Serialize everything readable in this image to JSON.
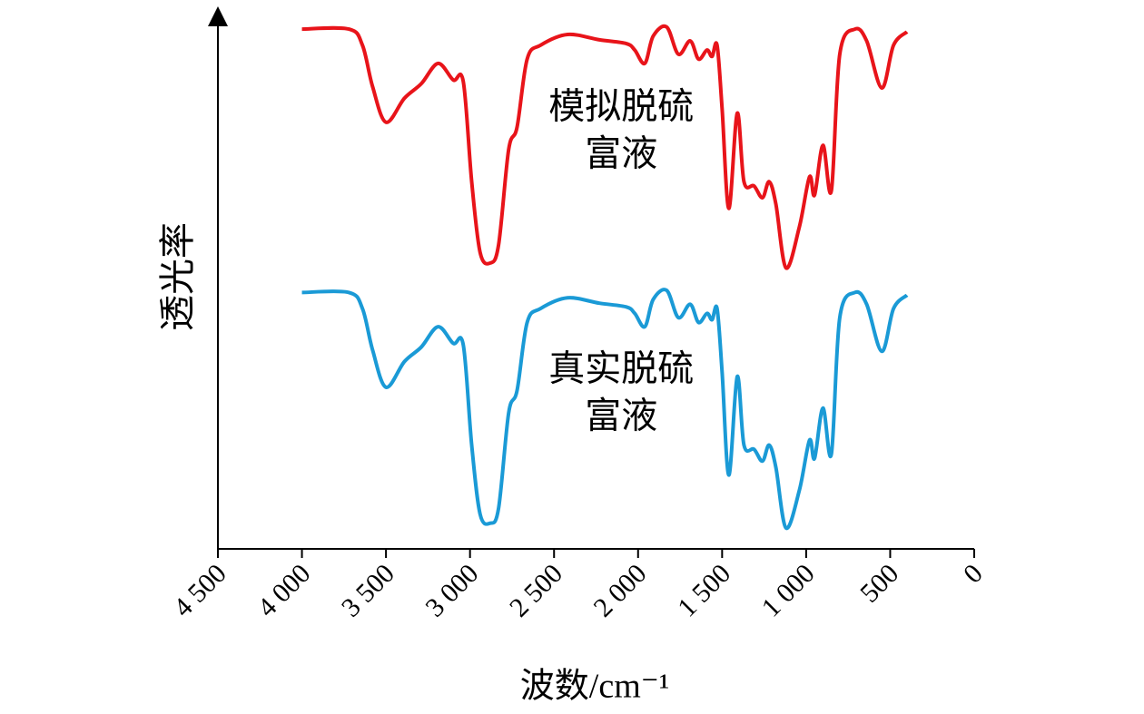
{
  "chart_data": {
    "type": "line",
    "x_label": "波数/cm⁻¹",
    "y_label": "透光率",
    "xlim": [
      4500,
      0
    ],
    "xticks": [
      {
        "value": 4500,
        "label": "4 500"
      },
      {
        "value": 4000,
        "label": "4 000"
      },
      {
        "value": 3500,
        "label": "3 500"
      },
      {
        "value": 3000,
        "label": "3 000"
      },
      {
        "value": 2500,
        "label": "2 500"
      },
      {
        "value": 2000,
        "label": "2 000"
      },
      {
        "value": 1500,
        "label": "1 500"
      },
      {
        "value": 1000,
        "label": "1 000"
      },
      500,
      0
    ],
    "ylim": [
      0,
      100
    ],
    "x": [
      4000,
      3720,
      3640,
      3580,
      3500,
      3390,
      3290,
      3190,
      3100,
      3040,
      2990,
      2940,
      2880,
      2830,
      2770,
      2720,
      2660,
      2580,
      2420,
      2230,
      2070,
      2020,
      1960,
      1910,
      1830,
      1760,
      1690,
      1640,
      1590,
      1560,
      1530,
      1500,
      1460,
      1410,
      1370,
      1310,
      1260,
      1220,
      1180,
      1120,
      1040,
      980,
      950,
      900,
      850,
      800,
      710,
      640,
      550,
      480,
      400
    ],
    "series": [
      {
        "color": "#e8141a",
        "values": [
          97.1,
          97.1,
          94.1,
          86.4,
          79.7,
          84.2,
          86.9,
          90.7,
          87.6,
          87.3,
          68.6,
          55.4,
          53.4,
          56.8,
          74.6,
          78.8,
          91.5,
          94.1,
          96.1,
          95.1,
          94.4,
          93.2,
          90.7,
          95.8,
          97.5,
          92.4,
          94.9,
          91.5,
          93.2,
          92.0,
          94.1,
          82.2,
          63.6,
          81.4,
          68.6,
          67.8,
          65.6,
          68.6,
          64.4,
          52.5,
          60.2,
          69.5,
          66.1,
          75.4,
          66.9,
          92.4,
          97.1,
          94.9,
          86.1,
          94.1,
          96.6
        ]
      },
      {
        "color": "#1a9ad6",
        "values": [
          47.9,
          47.9,
          44.9,
          37.2,
          30.2,
          35.0,
          37.7,
          41.5,
          38.4,
          38.1,
          19.4,
          6.5,
          4.8,
          7.6,
          25.4,
          29.6,
          42.3,
          44.9,
          46.9,
          45.9,
          45.2,
          44.0,
          41.5,
          46.6,
          48.3,
          43.2,
          45.7,
          42.3,
          44.0,
          42.8,
          44.9,
          33.0,
          13.8,
          32.2,
          19.4,
          18.6,
          16.4,
          19.4,
          15.2,
          3.9,
          11.0,
          20.3,
          16.9,
          26.3,
          17.7,
          43.2,
          47.9,
          45.7,
          36.9,
          44.9,
          47.4
        ]
      }
    ],
    "annotations": [
      {
        "lines": [
          "模拟脱硫",
          "富液"
        ],
        "x": 2100,
        "y": 82
      },
      {
        "lines": [
          "真实脱硫",
          "富液"
        ],
        "x": 2100,
        "y": 33
      }
    ]
  }
}
